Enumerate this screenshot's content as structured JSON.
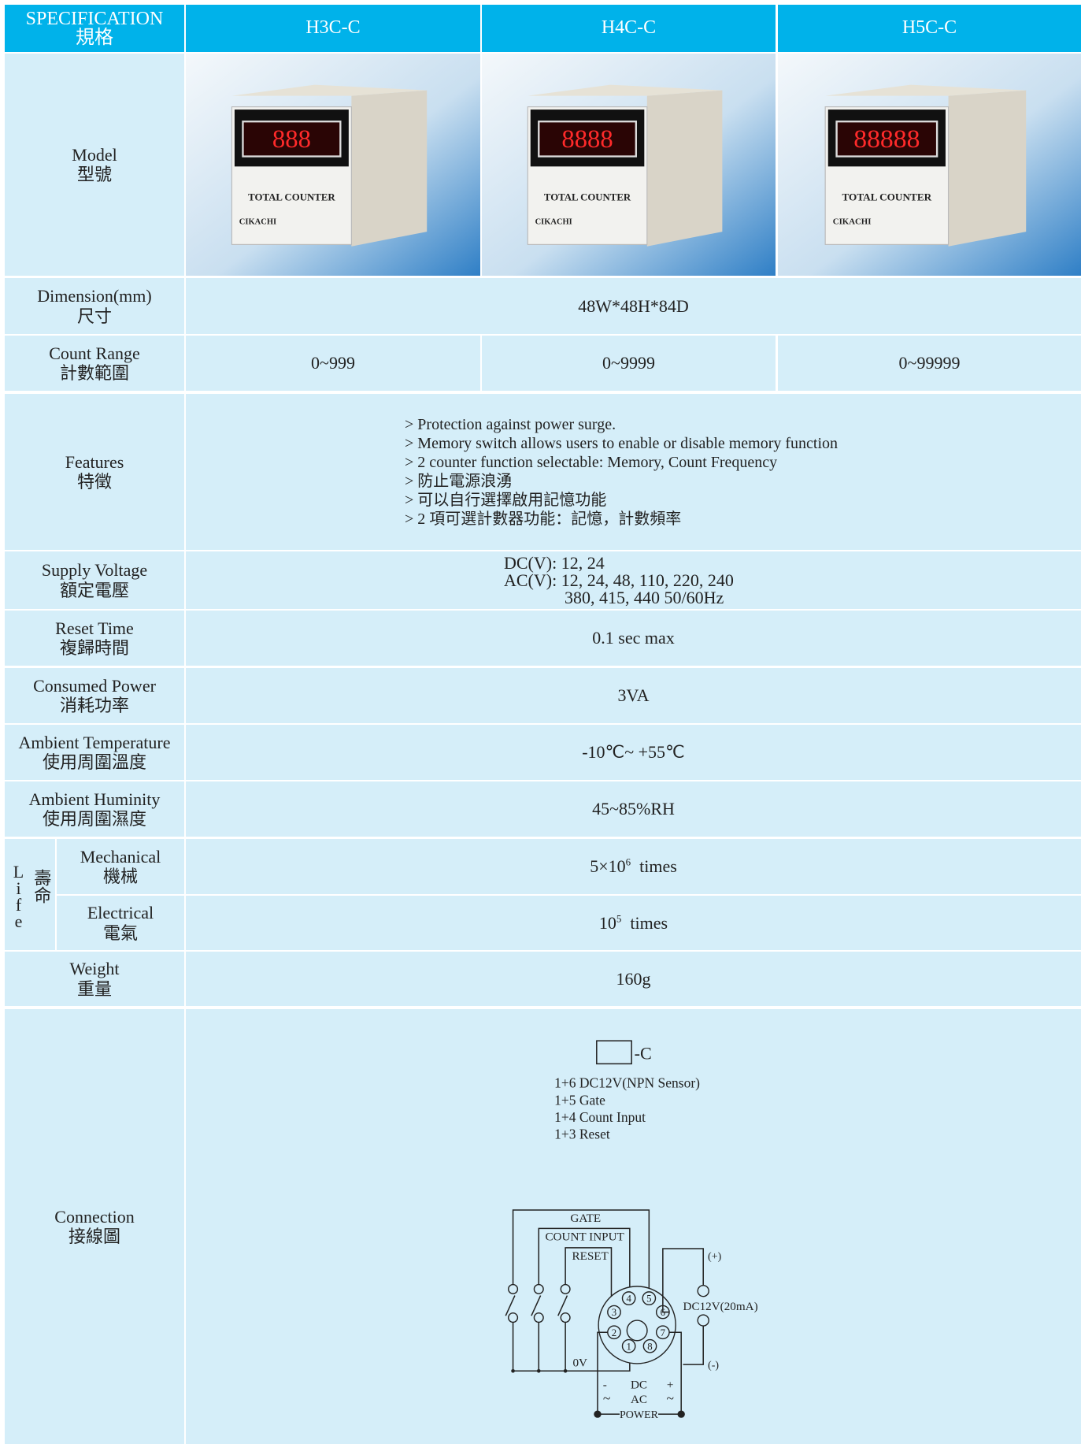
{
  "header": {
    "spec_en": "SPECIFICATION",
    "spec_zh": "規格",
    "models": [
      "H3C-C",
      "H4C-C",
      "H5C-C"
    ]
  },
  "model": {
    "label_en": "Model",
    "label_zh": "型號",
    "images": [
      {
        "display": "888",
        "caption": "TOTAL COUNTER",
        "brand": "CIKACHI"
      },
      {
        "display": "8888",
        "caption": "TOTAL COUNTER",
        "brand": "CIKACHI"
      },
      {
        "display": "88888",
        "caption": "TOTAL COUNTER",
        "brand": "CIKACHI"
      }
    ]
  },
  "dimension": {
    "label_en": "Dimension(mm)",
    "label_zh": "尺寸",
    "value": "48W*48H*84D"
  },
  "count_range": {
    "label_en": "Count Range",
    "label_zh": "計數範圍",
    "values": [
      "0~999",
      "0~9999",
      "0~99999"
    ]
  },
  "features": {
    "label_en": "Features",
    "label_zh": "特徵",
    "lines": [
      "> Protection against power surge.",
      "> Memory switch allows users to enable or disable memory function",
      "> 2 counter function selectable: Memory, Count Frequency",
      "> 防止電源浪湧",
      "> 可以自行選擇啟用記憶功能",
      "> 2 項可選計數器功能：記憶，計數頻率"
    ]
  },
  "supply_voltage": {
    "label_en": "Supply Voltage",
    "label_zh": "額定電壓",
    "lines": [
      "DC(V): 12, 24",
      "AC(V): 12, 24, 48, 110, 220, 240",
      "380, 415, 440 50/60Hz"
    ]
  },
  "reset_time": {
    "label_en": "Reset Time",
    "label_zh": "複歸時間",
    "value": "0.1 sec max"
  },
  "consumed_power": {
    "label_en": "Consumed Power",
    "label_zh": "消耗功率",
    "value": "3VA"
  },
  "ambient_temperature": {
    "label_en": "Ambient Temperature",
    "label_zh": "使用周圍溫度",
    "value": "-10℃~ +55℃"
  },
  "ambient_humidity": {
    "label_en": "Ambient Huminity",
    "label_zh": "使用周圍濕度",
    "value": "45~85%RH"
  },
  "life": {
    "label_en": "Life",
    "label_zh": "壽命",
    "mechanical": {
      "label_en": "Mechanical",
      "label_zh": "機械",
      "base": "5×10",
      "exponent": "6",
      "unit": "times"
    },
    "electrical": {
      "label_en": "Electrical",
      "label_zh": "電氣",
      "base": "10",
      "exponent": "5",
      "unit": "times"
    }
  },
  "weight": {
    "label_en": "Weight",
    "label_zh": "重量",
    "value": "160g"
  },
  "connection": {
    "label_en": "Connection",
    "label_zh": "接線圖",
    "suffix": "-C",
    "notes": [
      "1+6 DC12V(NPN Sensor)",
      "1+5 Gate",
      "1+4 Count Input",
      "1+3 Reset"
    ],
    "diagram": {
      "gate": "GATE",
      "count_input": "COUNT INPUT",
      "reset": "RESET",
      "plus": "(+)",
      "minus": "(-)",
      "sensor": "DC12V(20mA)",
      "zero_v": "0V",
      "dc": "DC",
      "ac": "AC",
      "dc_minus": "-",
      "dc_plus": "+",
      "ac_left": "~",
      "ac_right": "~",
      "power": "POWER",
      "pins": [
        "1",
        "2",
        "3",
        "4",
        "5",
        "6",
        "7",
        "8"
      ]
    }
  }
}
